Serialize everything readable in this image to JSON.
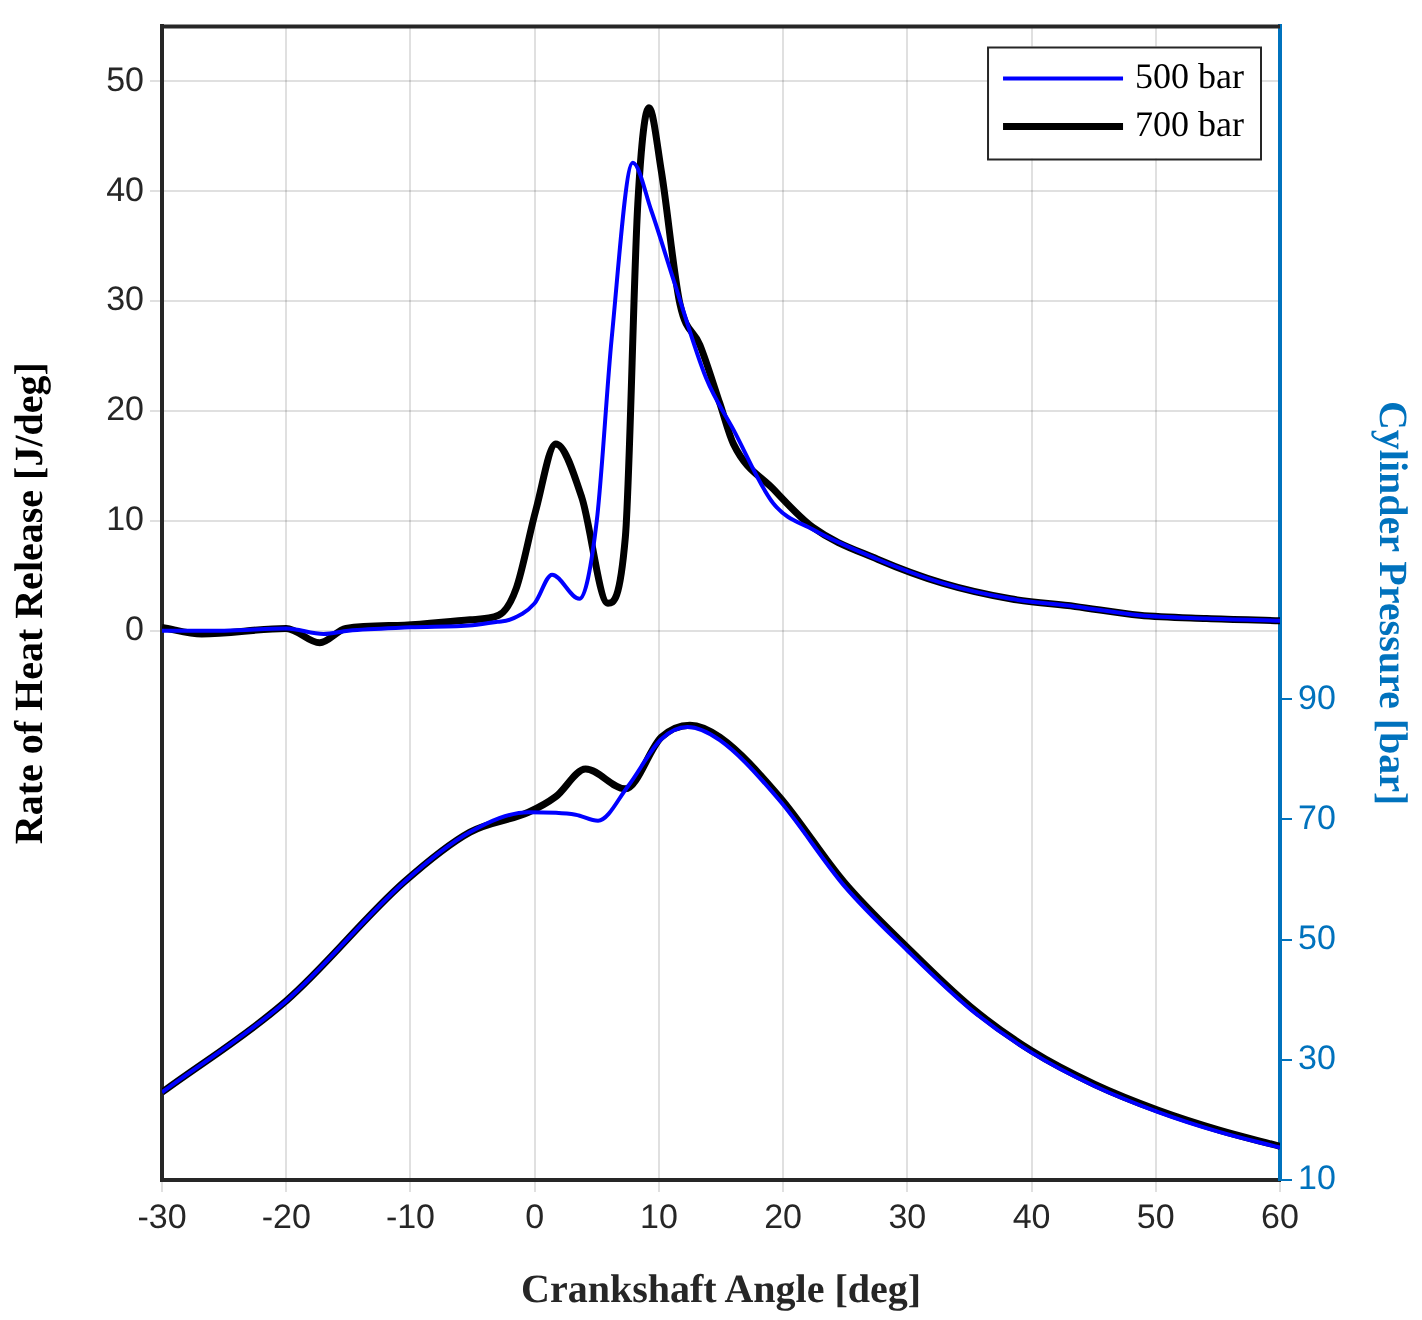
{
  "chart_data": {
    "type": "line",
    "xlabel": "Crankshaft Angle [deg]",
    "ylabel": "Rate of Heat Release [J/deg]",
    "y2label": "Cylinder Pressure [bar]",
    "xlim": [
      -30,
      60
    ],
    "xticks": [
      -30,
      -20,
      -10,
      0,
      10,
      20,
      30,
      40,
      50,
      60
    ],
    "ylim": [
      -50,
      55
    ],
    "yticks": [
      0,
      10,
      20,
      30,
      40,
      50
    ],
    "y2lim": [
      10,
      202
    ],
    "y2ticks": [
      10,
      30,
      50,
      70,
      90
    ],
    "grid": true,
    "legend": "top right",
    "marker": "none",
    "line_style": "solid",
    "series": [
      {
        "name": "500 bar",
        "color": "#0000ff",
        "x": [
          -30,
          -25,
          -20,
          -17,
          -15,
          -10,
          -5,
          -3,
          -2,
          0,
          1.4,
          3.6,
          5,
          6.2,
          7.9,
          9.4,
          11.3,
          13.8,
          16,
          19.2,
          22.4,
          27.6,
          32.9,
          38.3,
          43.5,
          48.7,
          54.1,
          60
        ],
        "values": [
          0,
          0,
          0.2,
          -0.3,
          0,
          0.3,
          0.5,
          0.8,
          1,
          2.5,
          5.1,
          2.9,
          10,
          26.6,
          42.6,
          38.2,
          31.5,
          23,
          18.3,
          11.6,
          9.2,
          6.5,
          4.3,
          2.9,
          2.2,
          1.4,
          1.1,
          0.9
        ]
      },
      {
        "name": "700 bar",
        "color": "#000000",
        "x": [
          -30,
          -26.8,
          -20,
          -17.3,
          -15.2,
          -10.5,
          -5.2,
          -2.9,
          -1.5,
          0.1,
          1.7,
          3.8,
          5.9,
          7.3,
          8.3,
          9.2,
          10.2,
          11.7,
          13.3,
          14.9,
          16,
          19.2,
          22.4,
          27.6,
          32.9,
          38.3,
          43.5,
          48.7,
          54.1,
          60
        ],
        "values": [
          0.3,
          -0.3,
          0.2,
          -1.1,
          0.2,
          0.5,
          1,
          1.4,
          3.8,
          11,
          17,
          12.1,
          2.5,
          8.5,
          38.8,
          47.6,
          41.8,
          29.7,
          26,
          20.7,
          17,
          12.9,
          9.4,
          6.5,
          4.3,
          2.9,
          2.2,
          1.4,
          1.1,
          0.9
        ]
      },
      {
        "axis": "y2",
        "color": "#0000ff",
        "x": [
          -30,
          -20,
          -10.5,
          -5.2,
          -0.5,
          3.3,
          5.1,
          7.5,
          10.2,
          12.3,
          14.9,
          19.7,
          24.9,
          30,
          35.1,
          40,
          45.1,
          50.2,
          55.1,
          60
        ],
        "values": [
          24.6,
          39.8,
          59.6,
          67.9,
          71.2,
          70.8,
          69.8,
          75.5,
          83.4,
          85.4,
          83.2,
          73.2,
          59,
          48.2,
          38.4,
          31.2,
          25.6,
          21.3,
          18,
          15.4
        ]
      },
      {
        "axis": "y2",
        "color": "#000000",
        "x": [
          -30,
          -20,
          -10.5,
          -5.2,
          -0.5,
          1.7,
          4.1,
          7.3,
          10.2,
          12.5,
          14.9,
          19.7,
          24.9,
          30,
          35.1,
          40,
          45.1,
          50.2,
          55.1,
          60
        ],
        "values": [
          24.6,
          39.8,
          59.6,
          67.9,
          71.2,
          73.8,
          78.4,
          75.1,
          83.7,
          85.7,
          83.7,
          73.8,
          59.6,
          48.7,
          38.8,
          31.5,
          25.9,
          21.6,
          18.3,
          15.6
        ]
      }
    ]
  }
}
